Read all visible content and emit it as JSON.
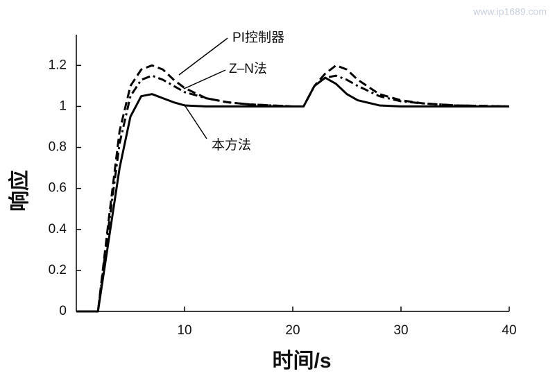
{
  "chart_data": {
    "type": "line",
    "watermark": "www.ip1689.com",
    "xlabel": "时间/s",
    "ylabel": "响应",
    "x": [
      0,
      1,
      2,
      3,
      4,
      5,
      6,
      7,
      8,
      9,
      10,
      12,
      14,
      16,
      18,
      20,
      21,
      22,
      23,
      24,
      25,
      26,
      28,
      30,
      32,
      35,
      40
    ],
    "series": [
      {
        "name": "PI控制器",
        "color": "#000000",
        "style": "dashed",
        "values": [
          0,
          0,
          0,
          0.45,
          0.88,
          1.1,
          1.18,
          1.2,
          1.18,
          1.13,
          1.09,
          1.04,
          1.02,
          1.01,
          1.005,
          1,
          1,
          1.1,
          1.16,
          1.2,
          1.18,
          1.13,
          1.06,
          1.03,
          1.015,
          1.005,
          1
        ]
      },
      {
        "name": "Z–N法",
        "color": "#000000",
        "style": "dashdot",
        "values": [
          0,
          0,
          0,
          0.42,
          0.82,
          1.05,
          1.13,
          1.15,
          1.13,
          1.1,
          1.07,
          1.04,
          1.02,
          1.01,
          1.005,
          1,
          1,
          1.1,
          1.14,
          1.15,
          1.13,
          1.1,
          1.05,
          1.025,
          1.015,
          1.005,
          1
        ]
      },
      {
        "name": "本方法",
        "color": "#000000",
        "style": "solid",
        "values": [
          0,
          0,
          0,
          0.35,
          0.7,
          0.95,
          1.05,
          1.06,
          1.04,
          1.02,
          1.005,
          1,
          1,
          1,
          1,
          1,
          1,
          1.1,
          1.14,
          1.11,
          1.06,
          1.03,
          1.005,
          1,
          1,
          1,
          1
        ]
      }
    ],
    "xlim": [
      0,
      40
    ],
    "xticks": [
      10,
      20,
      30,
      40
    ],
    "ylim": [
      0,
      1.35
    ],
    "yticks": [
      0,
      0.2,
      0.4,
      0.6,
      0.8,
      1,
      1.2
    ]
  }
}
